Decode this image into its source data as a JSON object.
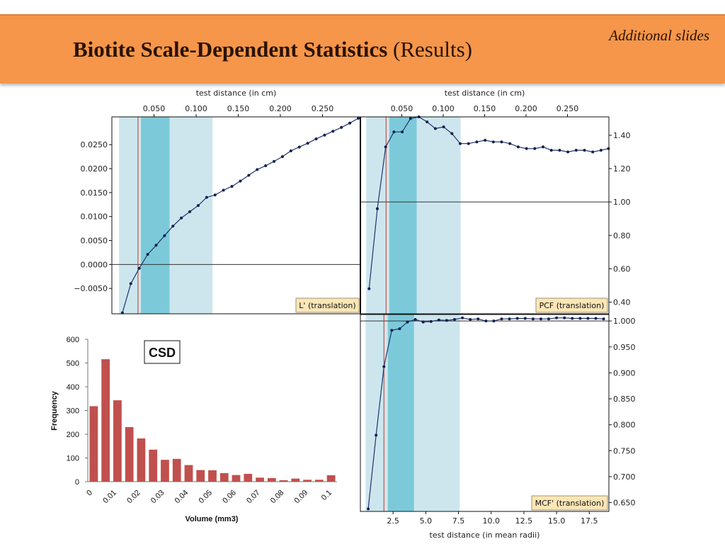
{
  "header": {
    "title_bold": "Biotite Scale-Dependent Statistics",
    "title_plain": " (Results)",
    "corner_note": "Additional slides",
    "background_color": "#f5964a"
  },
  "chart_data": [
    {
      "id": "L_prime",
      "type": "line",
      "legend": "L' (translation)",
      "xlabel": "test distance (in cm)",
      "x_ticks": [
        "0.050",
        "0.100",
        "0.150",
        "0.200",
        "0.250"
      ],
      "y_ticks": [
        "0.0250",
        "0.0200",
        "0.0150",
        "0.0100",
        "0.0050",
        "0.0000",
        "−0.0050"
      ],
      "xlim": [
        0.0,
        0.295
      ],
      "ylim": [
        -0.0103,
        0.0308
      ],
      "x": [
        0.0125,
        0.0225,
        0.0325,
        0.0425,
        0.0525,
        0.0625,
        0.0725,
        0.0825,
        0.0925,
        0.1025,
        0.1125,
        0.1225,
        0.1325,
        0.1425,
        0.1525,
        0.1625,
        0.1725,
        0.1825,
        0.1925,
        0.2025,
        0.2125,
        0.2225,
        0.2325,
        0.2425,
        0.2525,
        0.2625,
        0.2725,
        0.2825,
        0.2925
      ],
      "y": [
        -0.0101,
        -0.004,
        -0.0008,
        0.0021,
        0.004,
        0.006,
        0.008,
        0.0097,
        0.011,
        0.0123,
        0.014,
        0.0145,
        0.0155,
        0.0163,
        0.0174,
        0.0186,
        0.0198,
        0.0206,
        0.0215,
        0.0225,
        0.0237,
        0.0245,
        0.0253,
        0.0262,
        0.027,
        0.0278,
        0.0286,
        0.0295,
        0.0305
      ],
      "reference_line": 0.0,
      "light_band": [
        0.0085,
        0.1195
      ],
      "dark_band": [
        0.0345,
        0.0685
      ],
      "vertical_marker": 0.031
    },
    {
      "id": "PCF",
      "type": "line",
      "legend": "PCF (translation)",
      "xlabel": "test distance (in cm)",
      "x_ticks": [
        "0.050",
        "0.100",
        "0.150",
        "0.200",
        "0.250"
      ],
      "y_ticks": [
        "1.40",
        "1.20",
        "1.00",
        "0.80",
        "0.60",
        "0.40"
      ],
      "xlim": [
        0.0,
        0.3
      ],
      "ylim": [
        0.33,
        1.51
      ],
      "x": [
        0.0105,
        0.0205,
        0.0305,
        0.0405,
        0.0505,
        0.0605,
        0.0705,
        0.0805,
        0.0905,
        0.1005,
        0.1105,
        0.1205,
        0.1305,
        0.1405,
        0.1505,
        0.1605,
        0.1705,
        0.1805,
        0.1905,
        0.2005,
        0.2105,
        0.2205,
        0.2305,
        0.2405,
        0.2505,
        0.2605,
        0.2705,
        0.2805,
        0.2905,
        0.2995
      ],
      "y": [
        0.48,
        0.96,
        1.33,
        1.42,
        1.42,
        1.5,
        1.51,
        1.48,
        1.44,
        1.45,
        1.41,
        1.35,
        1.35,
        1.36,
        1.37,
        1.36,
        1.36,
        1.35,
        1.33,
        1.32,
        1.32,
        1.33,
        1.31,
        1.31,
        1.3,
        1.31,
        1.31,
        1.3,
        1.31,
        1.32
      ],
      "reference_line": 1.0,
      "light_band": [
        0.007,
        0.121
      ],
      "dark_band": [
        0.035,
        0.068
      ],
      "vertical_marker": 0.031
    },
    {
      "id": "MCF_prime",
      "type": "line",
      "legend": "MCF' (translation)",
      "xlabel": "test distance (in mean radii)",
      "x_ticks": [
        "2.5",
        "5.0",
        "7.5",
        "10.0",
        "12.5",
        "15.0",
        "17.5"
      ],
      "y_ticks": [
        "1.000",
        "0.950",
        "0.900",
        "0.850",
        "0.800",
        "0.750",
        "0.700",
        "0.650"
      ],
      "xlim": [
        0.0,
        19.0
      ],
      "ylim": [
        0.633,
        1.0125
      ],
      "x": [
        0.6,
        1.2,
        1.8,
        2.4,
        3.0,
        3.6,
        4.2,
        4.8,
        5.4,
        6.0,
        6.6,
        7.2,
        7.8,
        8.4,
        9.0,
        9.6,
        10.2,
        10.8,
        11.4,
        12.0,
        12.6,
        13.2,
        13.8,
        14.4,
        15.0,
        15.6,
        16.2,
        16.8,
        17.4,
        18.0,
        18.6
      ],
      "y": [
        0.638,
        0.78,
        0.912,
        0.982,
        0.985,
        0.998,
        1.003,
        0.998,
        0.999,
        1.002,
        1.001,
        1.003,
        1.006,
        1.003,
        1.004,
        1.0,
        1.0,
        1.004,
        1.004,
        1.005,
        1.005,
        1.004,
        1.004,
        1.004,
        1.006,
        1.006,
        1.005,
        1.005,
        1.005,
        1.005,
        1.004
      ],
      "reference_line": 1.0,
      "light_band": [
        0.4,
        7.6
      ],
      "dark_band": [
        2.1,
        4.1
      ],
      "vertical_marker": 1.8
    },
    {
      "id": "CSD",
      "type": "bar",
      "legend": "CSD",
      "xlabel": "Volume (mm3)",
      "ylabel": "Frequency",
      "ylim": [
        0,
        600
      ],
      "y_ticks": [
        "600",
        "500",
        "400",
        "300",
        "200",
        "100",
        "0"
      ],
      "x_ticks": [
        "0",
        "0.01",
        "0.02",
        "0.03",
        "0.04",
        "0.05",
        "0.06",
        "0.07",
        "0.08",
        "0.09",
        "0.1"
      ],
      "bar_color": "#c0504d",
      "values": [
        318,
        516,
        343,
        230,
        182,
        135,
        92,
        96,
        70,
        49,
        48,
        36,
        28,
        33,
        17,
        15,
        6,
        13,
        8,
        8,
        27
      ]
    }
  ]
}
